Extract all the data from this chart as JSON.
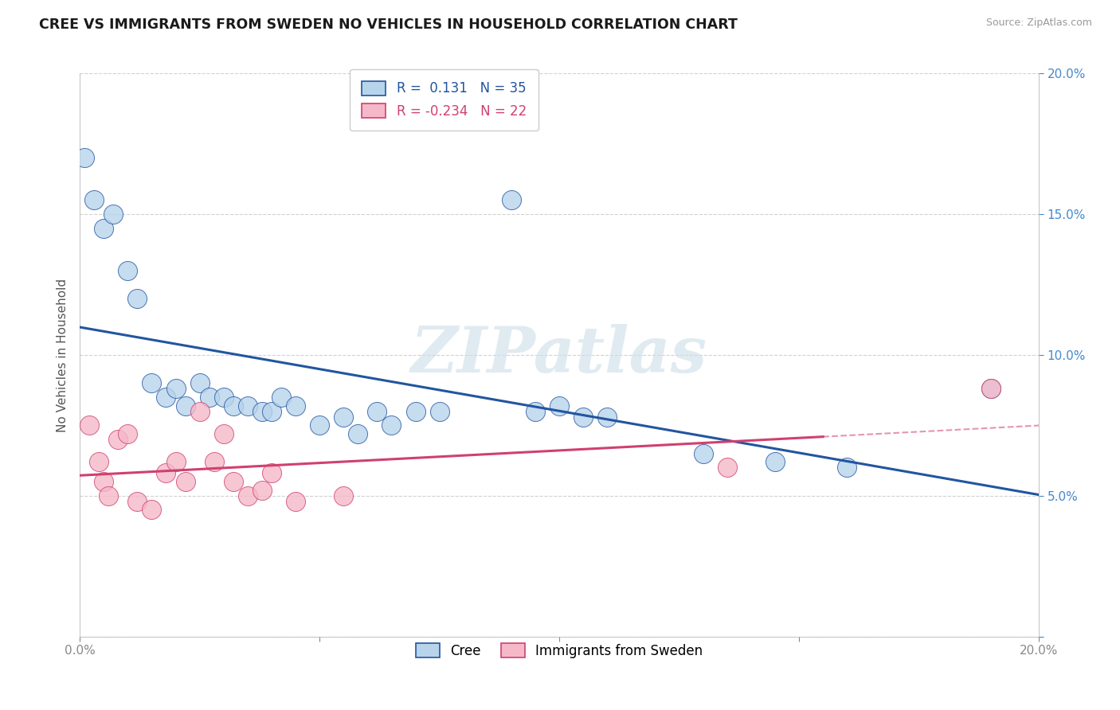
{
  "title": "CREE VS IMMIGRANTS FROM SWEDEN NO VEHICLES IN HOUSEHOLD CORRELATION CHART",
  "source": "Source: ZipAtlas.com",
  "ylabel": "No Vehicles in Household",
  "xlim": [
    0.0,
    0.2
  ],
  "ylim": [
    0.0,
    0.2
  ],
  "yticks": [
    0.0,
    0.05,
    0.1,
    0.15,
    0.2
  ],
  "xticks": [
    0.0,
    0.05,
    0.1,
    0.15,
    0.2
  ],
  "xtick_display": [
    "0.0%",
    "",
    "",
    "",
    "20.0%"
  ],
  "ytick_display": [
    "",
    "5.0%",
    "10.0%",
    "15.0%",
    "20.0%"
  ],
  "cree_x": [
    0.001,
    0.003,
    0.005,
    0.007,
    0.01,
    0.012,
    0.015,
    0.018,
    0.02,
    0.022,
    0.025,
    0.027,
    0.03,
    0.032,
    0.035,
    0.038,
    0.04,
    0.042,
    0.045,
    0.05,
    0.055,
    0.058,
    0.062,
    0.065,
    0.07,
    0.075,
    0.09,
    0.095,
    0.1,
    0.105,
    0.11,
    0.13,
    0.145,
    0.16,
    0.19
  ],
  "cree_y": [
    0.17,
    0.155,
    0.145,
    0.15,
    0.13,
    0.12,
    0.09,
    0.085,
    0.088,
    0.082,
    0.09,
    0.085,
    0.085,
    0.082,
    0.082,
    0.08,
    0.08,
    0.085,
    0.082,
    0.075,
    0.078,
    0.072,
    0.08,
    0.075,
    0.08,
    0.08,
    0.155,
    0.08,
    0.082,
    0.078,
    0.078,
    0.065,
    0.062,
    0.06,
    0.088
  ],
  "sweden_x": [
    0.002,
    0.004,
    0.005,
    0.006,
    0.008,
    0.01,
    0.012,
    0.015,
    0.018,
    0.02,
    0.022,
    0.025,
    0.028,
    0.03,
    0.032,
    0.035,
    0.038,
    0.04,
    0.045,
    0.055,
    0.135,
    0.19
  ],
  "sweden_y": [
    0.075,
    0.062,
    0.055,
    0.05,
    0.07,
    0.072,
    0.048,
    0.045,
    0.058,
    0.062,
    0.055,
    0.08,
    0.062,
    0.072,
    0.055,
    0.05,
    0.052,
    0.058,
    0.048,
    0.05,
    0.06,
    0.088
  ],
  "cree_R": 0.131,
  "cree_N": 35,
  "sweden_R": -0.234,
  "sweden_N": 22,
  "cree_color": "#b8d4eb",
  "sweden_color": "#f5b8c8",
  "cree_line_color": "#2255a0",
  "sweden_line_color": "#d04070",
  "watermark_color": "#ccdde8",
  "background_color": "#ffffff"
}
